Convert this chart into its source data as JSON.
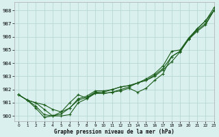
{
  "title": "Graphe pression niveau de la mer (hPa)",
  "bg_color": "#d9f0ee",
  "grid_color": "#b8d8d4",
  "line_color": "#1a5c1a",
  "xlim": [
    -0.5,
    23
  ],
  "ylim": [
    979.6,
    988.6
  ],
  "yticks": [
    980,
    981,
    982,
    983,
    984,
    985,
    986,
    987,
    988
  ],
  "xtick_labels": [
    "0",
    "1",
    "2",
    "3",
    "4",
    "5",
    "6",
    "7",
    "8",
    "9",
    "10",
    "11",
    "12",
    "13",
    "14",
    "15",
    "16",
    "17",
    "18",
    "19",
    "20",
    "21",
    "22",
    "23"
  ],
  "xtick_pos": [
    0,
    1,
    2,
    3,
    4,
    5,
    6,
    7,
    8,
    9,
    10,
    11,
    12,
    13,
    14,
    15,
    16,
    17,
    18,
    19,
    20,
    21,
    22,
    23
  ],
  "series": [
    [
      981.6,
      981.2,
      981.0,
      980.5,
      980.0,
      980.0,
      980.1,
      981.0,
      981.3,
      981.7,
      981.7,
      981.8,
      981.9,
      982.1,
      981.8,
      982.1,
      982.7,
      983.2,
      984.5,
      984.9,
      985.8,
      986.6,
      987.2,
      988.2
    ],
    [
      981.6,
      981.2,
      981.0,
      980.85,
      980.5,
      980.3,
      980.6,
      981.3,
      981.5,
      981.9,
      981.9,
      982.0,
      982.2,
      982.3,
      982.5,
      982.7,
      983.1,
      983.6,
      984.5,
      984.9,
      985.8,
      986.5,
      987.0,
      988.0
    ],
    [
      981.6,
      981.2,
      980.75,
      980.1,
      980.0,
      980.15,
      980.6,
      981.2,
      981.4,
      981.8,
      981.8,
      982.0,
      982.2,
      982.3,
      982.5,
      982.7,
      983.0,
      983.5,
      984.1,
      984.85,
      985.8,
      986.4,
      986.9,
      988.0
    ],
    [
      981.6,
      981.2,
      980.6,
      979.9,
      980.0,
      980.3,
      981.0,
      981.6,
      981.35,
      981.75,
      981.7,
      981.8,
      982.0,
      982.2,
      982.5,
      982.8,
      983.2,
      983.8,
      984.9,
      985.0,
      985.9,
      986.6,
      987.2,
      988.0
    ]
  ]
}
